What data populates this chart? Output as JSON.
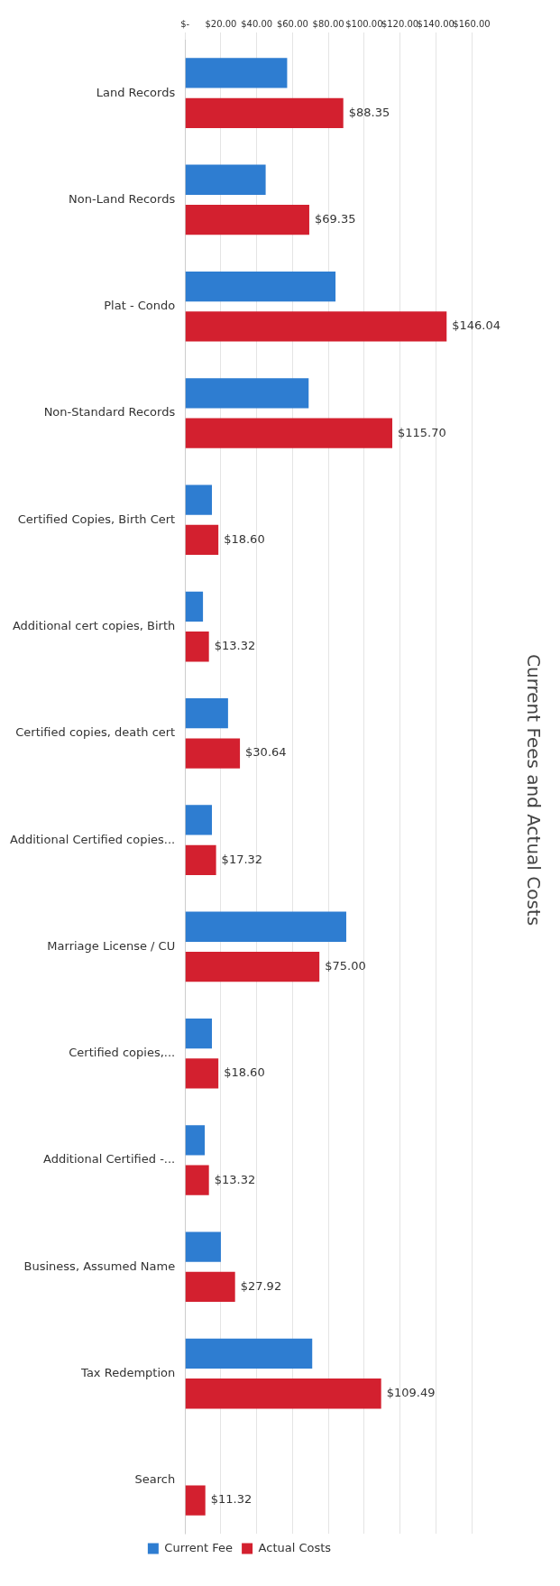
{
  "chart_data": {
    "type": "bar",
    "orientation": "horizontal",
    "title": "Current Fees and Actual Costs",
    "categories": [
      "Land Records",
      "Non-Land Records",
      "Plat - Condo",
      "Non-Standard Records",
      "Certified Copies, Birth Cert",
      "Additional cert copies, Birth",
      "Certified copies, death cert",
      "Additional Certified copies...",
      "Marriage License / CU",
      "Certified copies,...",
      "Additional Certified -...",
      "Business, Assumed Name",
      "Tax Redemption",
      "Search"
    ],
    "series": [
      {
        "name": "Current Fee",
        "color": "#2e7dd1",
        "values": [
          57,
          45,
          84,
          69,
          15,
          10,
          24,
          15,
          90,
          15,
          11,
          20,
          71,
          null
        ]
      },
      {
        "name": "Actual Costs",
        "color": "#d3202f",
        "values": [
          88.35,
          69.35,
          146.04,
          115.7,
          18.6,
          13.32,
          30.64,
          17.32,
          75,
          18.6,
          13.32,
          27.92,
          109.49,
          11.32
        ],
        "value_labels": [
          "$88.35",
          "$69.35",
          "$146.04",
          "$115.70",
          "$18.60",
          "$13.32",
          "$30.64",
          "$17.32",
          "$75.00",
          "$18.60",
          "$13.32",
          "$27.92",
          "$109.49",
          "$11.32"
        ]
      }
    ],
    "xlim": [
      0,
      160
    ],
    "xticks": [
      {
        "value": 0,
        "label": "$-"
      },
      {
        "value": 20,
        "label": "$20.00"
      },
      {
        "value": 40,
        "label": "$40.00"
      },
      {
        "value": 60,
        "label": "$60.00"
      },
      {
        "value": 80,
        "label": "$80.00"
      },
      {
        "value": 100,
        "label": "$100.00"
      },
      {
        "value": 120,
        "label": "$120.00"
      },
      {
        "value": 140,
        "label": "$140.00"
      },
      {
        "value": 160,
        "label": "$160.00"
      }
    ],
    "grid": "x",
    "legend": "bottom"
  }
}
